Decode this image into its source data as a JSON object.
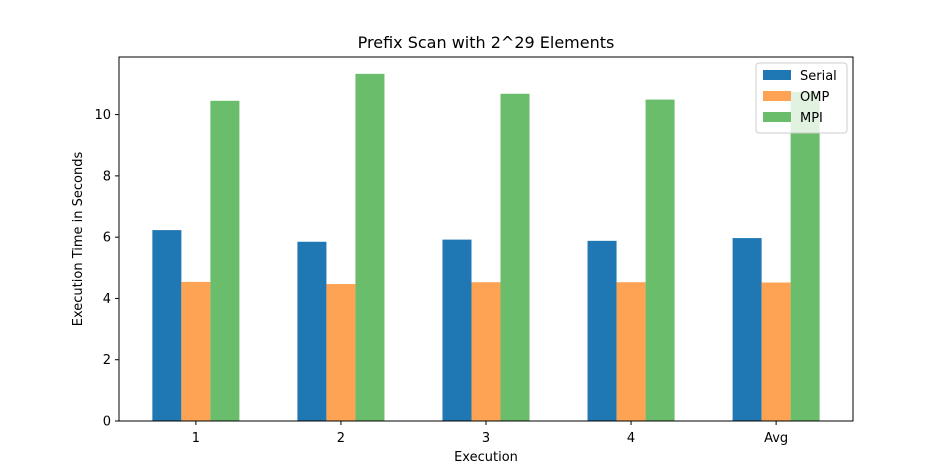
{
  "chart_data": {
    "type": "bar",
    "title": "Prefix Scan with 2^29 Elements",
    "xlabel": "Execution",
    "ylabel": "Execution Time in Seconds",
    "categories": [
      "1",
      "2",
      "3",
      "4",
      "Avg"
    ],
    "ylim": [
      0,
      11.88
    ],
    "yticks": [
      0,
      2,
      4,
      6,
      8,
      10
    ],
    "legend_position": "upper-right",
    "grid": false,
    "series": [
      {
        "name": "Serial",
        "color": "#1f77b4",
        "values": [
          6.23,
          5.85,
          5.92,
          5.88,
          5.97
        ]
      },
      {
        "name": "OMP",
        "color": "#fea353",
        "values": [
          4.54,
          4.47,
          4.53,
          4.53,
          4.52
        ]
      },
      {
        "name": "MPI",
        "color": "#6abd6a",
        "values": [
          10.45,
          11.33,
          10.68,
          10.49,
          10.74
        ]
      }
    ]
  }
}
